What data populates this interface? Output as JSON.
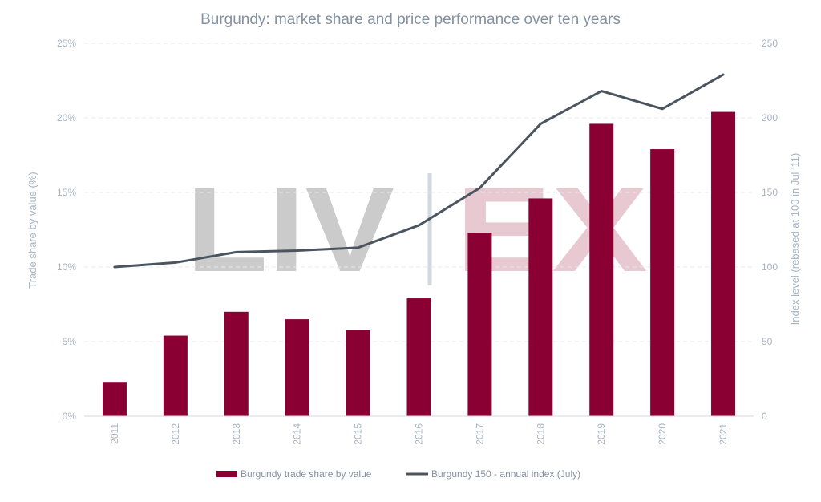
{
  "chart_data": {
    "type": "bar",
    "title": "Burgundy: market share and price performance over ten years",
    "categories": [
      "2011",
      "2012",
      "2013",
      "2014",
      "2015",
      "2016",
      "2017",
      "2018",
      "2019",
      "2020",
      "2021"
    ],
    "series": [
      {
        "name": "Burgundy trade share by value",
        "type": "bar",
        "axis": "left",
        "color": "#8a0033",
        "values": [
          2.3,
          5.4,
          7.0,
          6.5,
          5.8,
          7.9,
          12.3,
          14.6,
          19.6,
          17.9,
          20.4
        ]
      },
      {
        "name": "Burgundy 150 - annual index (July)",
        "type": "line",
        "axis": "right",
        "color": "#4b555f",
        "values": [
          100,
          103,
          110,
          111,
          113,
          128,
          153,
          196,
          218,
          206,
          229
        ]
      }
    ],
    "ylabel_left": "Trade share by value (%)",
    "ylabel_right": "Index level (rebased at 100 in Jul '11)",
    "ylim_left": [
      0,
      25
    ],
    "ylim_right": [
      0,
      250
    ],
    "yticks_left": [
      "0%",
      "5%",
      "10%",
      "15%",
      "20%",
      "25%"
    ],
    "yticks_right": [
      "0",
      "50",
      "100",
      "150",
      "200",
      "250"
    ],
    "grid": true,
    "legend_position": "bottom-center",
    "watermark": {
      "left_text": "LIV",
      "right_text": "EX",
      "left_color": "#cbcbcb",
      "right_color": "#e8c9d2",
      "divider_color": "#d3d8de"
    },
    "colors": {
      "title": "#8391a1",
      "axis_text": "#a8b4c2",
      "gridline": "#e4e8ed",
      "axis_line": "#d3d8de"
    }
  }
}
